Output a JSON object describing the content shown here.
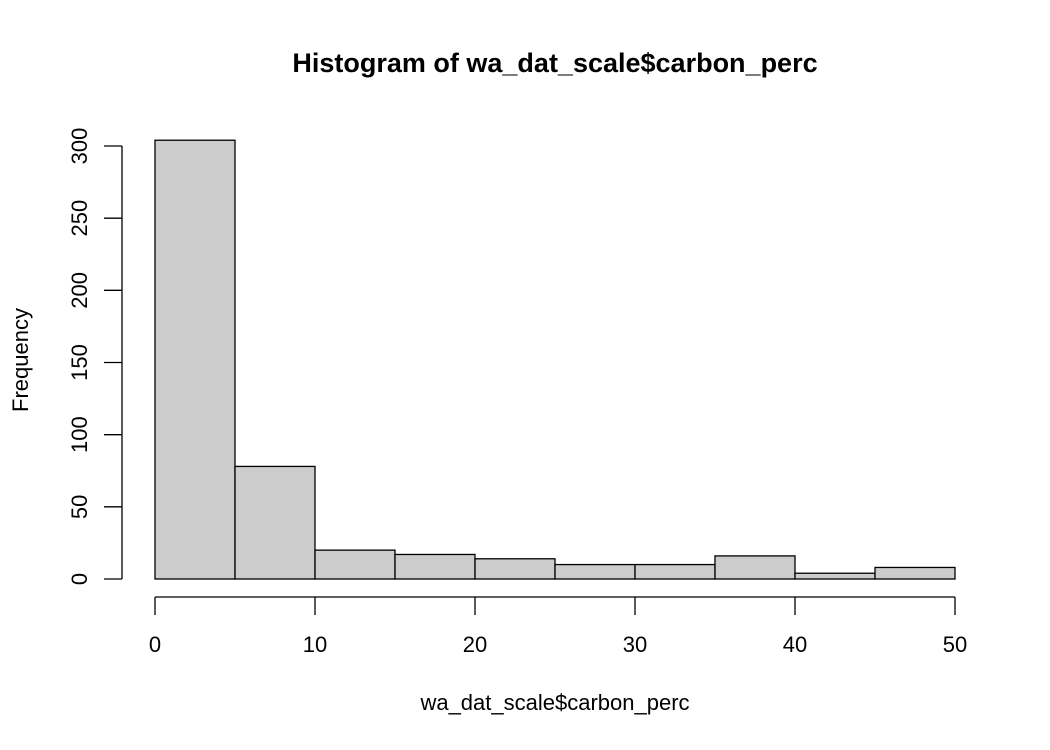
{
  "chart_data": {
    "type": "bar",
    "title": "Histogram of wa_dat_scale$carbon_perc",
    "xlabel": "wa_dat_scale$carbon_perc",
    "ylabel": "Frequency",
    "bin_edges": [
      0,
      5,
      10,
      15,
      20,
      25,
      30,
      35,
      40,
      45,
      50
    ],
    "values": [
      304,
      78,
      20,
      17,
      14,
      10,
      10,
      16,
      4,
      8
    ],
    "xlim": [
      0,
      50
    ],
    "ylim": [
      0,
      300
    ],
    "xticks": [
      0,
      10,
      20,
      30,
      40,
      50
    ],
    "yticks": [
      0,
      50,
      100,
      150,
      200,
      250,
      300
    ],
    "bar_color": "#cccccc",
    "grid": false
  }
}
